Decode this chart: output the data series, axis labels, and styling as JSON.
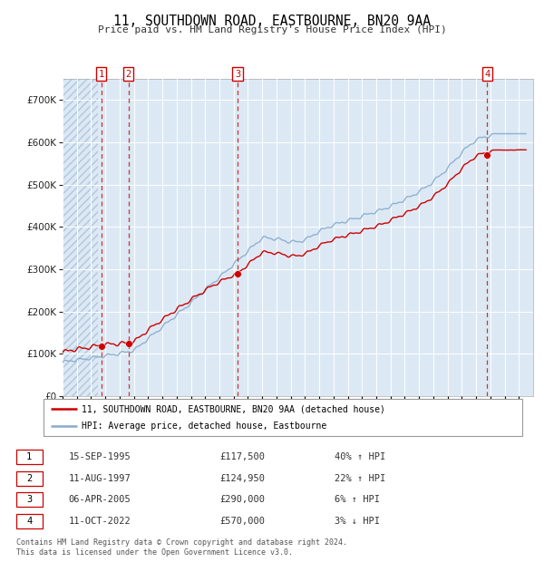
{
  "title": "11, SOUTHDOWN ROAD, EASTBOURNE, BN20 9AA",
  "subtitle": "Price paid vs. HM Land Registry's House Price Index (HPI)",
  "background_color": "#ffffff",
  "plot_bg_color": "#dce9f5",
  "hatch_edgecolor": "#b8cce0",
  "grid_color": "#ffffff",
  "ylim": [
    0,
    750000
  ],
  "yticks": [
    0,
    100000,
    200000,
    300000,
    400000,
    500000,
    600000,
    700000
  ],
  "ytick_labels": [
    "£0",
    "£100K",
    "£200K",
    "£300K",
    "£400K",
    "£500K",
    "£600K",
    "£700K"
  ],
  "xlim_start": 1993.0,
  "xlim_end": 2026.0,
  "hatch_end": 1995.5,
  "transactions": [
    {
      "num": 1,
      "date": "15-SEP-1995",
      "price": 117500,
      "year": 1995.71,
      "hpi_rel": "40% ↑ HPI"
    },
    {
      "num": 2,
      "date": "11-AUG-1997",
      "price": 124950,
      "year": 1997.61,
      "hpi_rel": "22% ↑ HPI"
    },
    {
      "num": 3,
      "date": "06-APR-2005",
      "price": 290000,
      "year": 2005.27,
      "hpi_rel": "6% ↑ HPI"
    },
    {
      "num": 4,
      "date": "11-OCT-2022",
      "price": 570000,
      "year": 2022.78,
      "hpi_rel": "3% ↓ HPI"
    }
  ],
  "legend_line1": "11, SOUTHDOWN ROAD, EASTBOURNE, BN20 9AA (detached house)",
  "legend_line2": "HPI: Average price, detached house, Eastbourne",
  "footer": "Contains HM Land Registry data © Crown copyright and database right 2024.\nThis data is licensed under the Open Government Licence v3.0.",
  "red_line_color": "#cc0000",
  "blue_line_color": "#88aacc",
  "dot_color": "#cc0000",
  "dashed_color": "#cc0000"
}
